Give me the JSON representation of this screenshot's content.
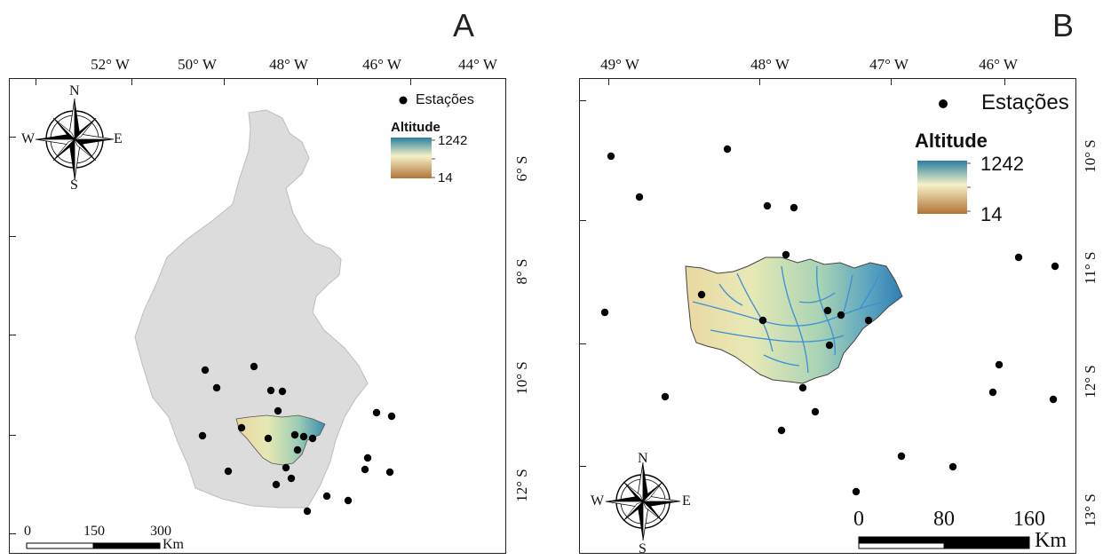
{
  "panels": {
    "a": {
      "letter": "A",
      "top_ticks": [
        "52° W",
        "50° W",
        "48° W",
        "46° W",
        "44° W"
      ],
      "right_ticks": [
        "6° S",
        "8° S",
        "10° S",
        "12° S"
      ],
      "legend": {
        "stations": "Estações",
        "altitude_title": "Altitude",
        "max": "1242",
        "min": "14"
      },
      "scalebar": {
        "labels": [
          "0",
          "150",
          "300"
        ],
        "unit": "Km"
      },
      "compass": {
        "n": "N",
        "s": "S",
        "e": "E",
        "w": "W"
      }
    },
    "b": {
      "letter": "B",
      "top_ticks": [
        "49° W",
        "48° W",
        "47° W",
        "46° W"
      ],
      "right_ticks": [
        "10° S",
        "11° S",
        "12° S",
        "13° S"
      ],
      "legend": {
        "stations": "Estações",
        "altitude_title": "Altitude",
        "max": "1242",
        "min": "14"
      },
      "scalebar": {
        "labels": [
          "0",
          "80",
          "160"
        ],
        "unit": "Km"
      },
      "compass": {
        "n": "N",
        "s": "S",
        "e": "E",
        "w": "W"
      }
    }
  },
  "colors": {
    "state_fill": "#dcdcdc",
    "station": "#000000",
    "river": "#3a8fd6",
    "altitude_high": "#2e86a8",
    "altitude_mid": "#f3efc2",
    "altitude_low": "#b57a3e"
  }
}
